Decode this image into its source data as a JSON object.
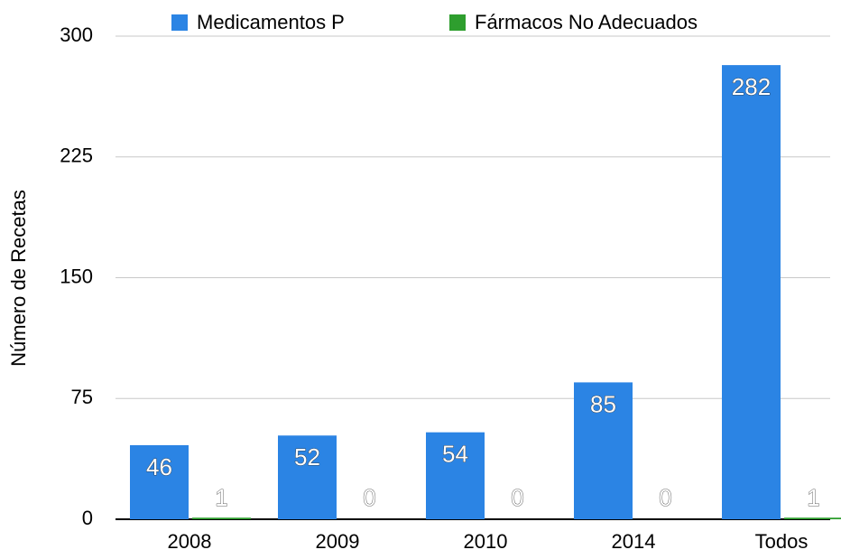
{
  "chart_data": {
    "type": "bar",
    "y_label": "Número de Recetas",
    "categories": [
      "2008",
      "2009",
      "2010",
      "2014",
      "Todos"
    ],
    "series": [
      {
        "name": "Medicamentos P",
        "color": "#2b84e4",
        "values": [
          46,
          52,
          54,
          85,
          282
        ]
      },
      {
        "name": "Fármacos No Adecuados",
        "color": "#2e9e2e",
        "values": [
          1,
          0,
          0,
          0,
          1
        ]
      }
    ],
    "ylim": [
      0,
      300
    ],
    "yticks": [
      0,
      75,
      150,
      225,
      300
    ],
    "grid": true,
    "legend": "top"
  }
}
